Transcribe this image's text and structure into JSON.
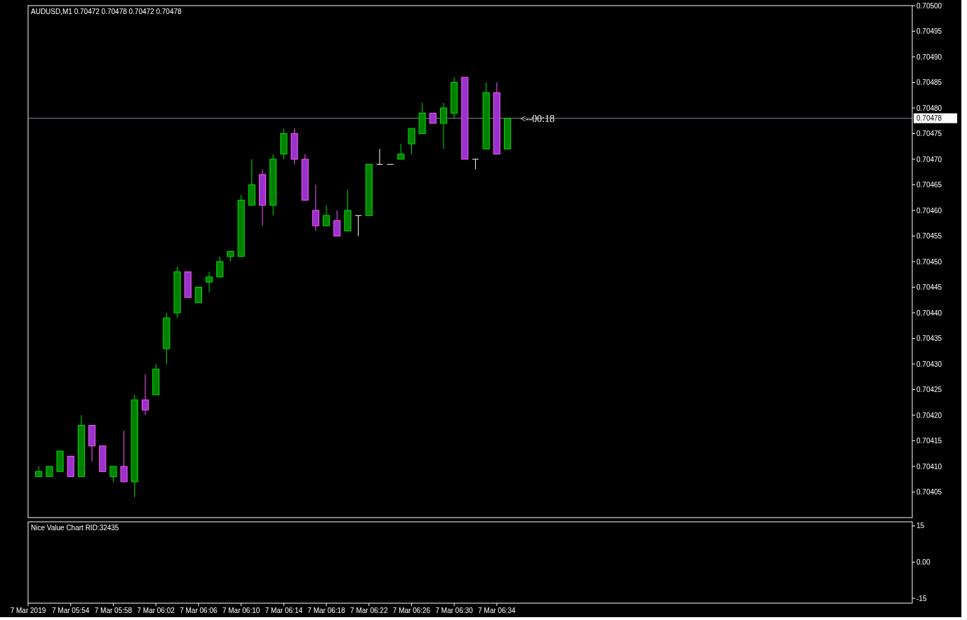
{
  "chart_data": [
    {
      "type": "candlestick",
      "title": "AUDUSD,M1  0.70472 0.70478 0.70472 0.70478",
      "x": [
        "2019-03-07T05:51",
        "2019-03-07T05:52",
        "2019-03-07T05:53",
        "2019-03-07T05:54",
        "2019-03-07T05:55",
        "2019-03-07T05:56",
        "2019-03-07T05:57",
        "2019-03-07T05:58",
        "2019-03-07T05:59",
        "2019-03-07T06:00",
        "2019-03-07T06:01",
        "2019-03-07T06:02",
        "2019-03-07T06:03",
        "2019-03-07T06:04",
        "2019-03-07T06:05",
        "2019-03-07T06:06",
        "2019-03-07T06:07",
        "2019-03-07T06:08",
        "2019-03-07T06:09",
        "2019-03-07T06:10",
        "2019-03-07T06:11",
        "2019-03-07T06:12",
        "2019-03-07T06:13",
        "2019-03-07T06:14",
        "2019-03-07T06:15",
        "2019-03-07T06:16",
        "2019-03-07T06:17",
        "2019-03-07T06:18",
        "2019-03-07T06:19",
        "2019-03-07T06:20",
        "2019-03-07T06:21",
        "2019-03-07T06:22",
        "2019-03-07T06:23",
        "2019-03-07T06:24",
        "2019-03-07T06:25",
        "2019-03-07T06:26",
        "2019-03-07T06:27",
        "2019-03-07T06:28",
        "2019-03-07T06:29",
        "2019-03-07T06:30",
        "2019-03-07T06:31",
        "2019-03-07T06:32",
        "2019-03-07T06:33",
        "2019-03-07T06:34",
        "2019-03-07T06:35"
      ],
      "ohlc": [
        [
          0.70408,
          0.7041,
          0.70408,
          0.70409
        ],
        [
          0.70408,
          0.7041,
          0.70408,
          0.7041
        ],
        [
          0.70409,
          0.70413,
          0.70409,
          0.70413
        ],
        [
          0.70412,
          0.70412,
          0.70408,
          0.70408
        ],
        [
          0.70408,
          0.7042,
          0.70408,
          0.70418
        ],
        [
          0.70418,
          0.70418,
          0.70411,
          0.70414
        ],
        [
          0.70414,
          0.70414,
          0.70409,
          0.70409
        ],
        [
          0.70408,
          0.7041,
          0.70407,
          0.7041
        ],
        [
          0.7041,
          0.70417,
          0.70407,
          0.70407
        ],
        [
          0.70407,
          0.70424,
          0.70404,
          0.70423
        ],
        [
          0.70423,
          0.70428,
          0.7042,
          0.70421
        ],
        [
          0.70424,
          0.7043,
          0.70424,
          0.70429
        ],
        [
          0.70433,
          0.7044,
          0.7043,
          0.70439
        ],
        [
          0.7044,
          0.70449,
          0.70439,
          0.70448
        ],
        [
          0.70448,
          0.70448,
          0.70443,
          0.70443
        ],
        [
          0.70442,
          0.70445,
          0.70442,
          0.70445
        ],
        [
          0.70446,
          0.70448,
          0.70444,
          0.70447
        ],
        [
          0.70447,
          0.70451,
          0.70447,
          0.7045
        ],
        [
          0.70451,
          0.70452,
          0.7045,
          0.70452
        ],
        [
          0.70451,
          0.70463,
          0.70451,
          0.70462
        ],
        [
          0.70461,
          0.7047,
          0.70461,
          0.70465
        ],
        [
          0.70467,
          0.70468,
          0.70457,
          0.70461
        ],
        [
          0.70461,
          0.70471,
          0.70459,
          0.7047
        ],
        [
          0.70471,
          0.70476,
          0.7047,
          0.70475
        ],
        [
          0.70475,
          0.70476,
          0.70469,
          0.7047
        ],
        [
          0.7047,
          0.70471,
          0.70462,
          0.70462
        ],
        [
          0.7046,
          0.70465,
          0.70456,
          0.70457
        ],
        [
          0.70457,
          0.70461,
          0.70457,
          0.70459
        ],
        [
          0.70458,
          0.7046,
          0.70455,
          0.70455
        ],
        [
          0.70456,
          0.70464,
          0.70456,
          0.7046
        ],
        [
          0.70459,
          0.70459,
          0.70455,
          0.70459
        ],
        [
          0.70459,
          0.70469,
          0.70459,
          0.70469
        ],
        [
          0.70469,
          0.70472,
          0.70469,
          0.70469
        ],
        [
          0.70469,
          0.70469,
          0.70469,
          0.70469
        ],
        [
          0.7047,
          0.70473,
          0.7047,
          0.70471
        ],
        [
          0.70473,
          0.70476,
          0.70471,
          0.70476
        ],
        [
          0.70475,
          0.70481,
          0.70475,
          0.70479
        ],
        [
          0.70479,
          0.70479,
          0.70477,
          0.70477
        ],
        [
          0.70477,
          0.70481,
          0.70472,
          0.7048
        ],
        [
          0.70479,
          0.70486,
          0.70478,
          0.70485
        ],
        [
          0.70486,
          0.70486,
          0.7047,
          0.7047
        ],
        [
          0.7047,
          0.7047,
          0.70468,
          0.7047
        ],
        [
          0.70472,
          0.70485,
          0.70472,
          0.70483
        ],
        [
          0.70483,
          0.70485,
          0.70471,
          0.70471
        ],
        [
          0.70472,
          0.70478,
          0.70472,
          0.70478
        ]
      ],
      "colors": [
        "#008000",
        "#008000",
        "#008000",
        "#9932cc",
        "#008000",
        "#9932cc",
        "#9932cc",
        "#008000",
        "#9932cc",
        "#008000",
        "#9932cc",
        "#008000",
        "#008000",
        "#008000",
        "#9932cc",
        "#008000",
        "#008000",
        "#008000",
        "#008000",
        "#008000",
        "#008000",
        "#9932cc",
        "#008000",
        "#008000",
        "#9932cc",
        "#9932cc",
        "#9932cc",
        "#008000",
        "#9932cc",
        "#008000",
        "#ffffff",
        "#008000",
        "#ffffff",
        "#ffffff",
        "#008000",
        "#008000",
        "#008000",
        "#9932cc",
        "#008000",
        "#008000",
        "#9932cc",
        "#ffffff",
        "#008000",
        "#9932cc",
        "#008000"
      ],
      "xlim": [
        "2019-03-07T05:50",
        "2019-03-07T07:13"
      ],
      "ylim": [
        0.704,
        0.705
      ],
      "yticks": [
        {
          "value": 0.70405,
          "label": "0.70405"
        },
        {
          "value": 0.7041,
          "label": "0.70410"
        },
        {
          "value": 0.70415,
          "label": "0.70415"
        },
        {
          "value": 0.7042,
          "label": "0.70420"
        },
        {
          "value": 0.70425,
          "label": "0.70425"
        },
        {
          "value": 0.7043,
          "label": "0.70430"
        },
        {
          "value": 0.70435,
          "label": "0.70435"
        },
        {
          "value": 0.7044,
          "label": "0.70440"
        },
        {
          "value": 0.70445,
          "label": "0.70445"
        },
        {
          "value": 0.7045,
          "label": "0.70450"
        },
        {
          "value": 0.70455,
          "label": "0.70455"
        },
        {
          "value": 0.7046,
          "label": "0.70460"
        },
        {
          "value": 0.70465,
          "label": "0.70465"
        },
        {
          "value": 0.7047,
          "label": "0.70470"
        },
        {
          "value": 0.70475,
          "label": "0.70475"
        },
        {
          "value": 0.7048,
          "label": "0.70480"
        },
        {
          "value": 0.70485,
          "label": "0.70485"
        },
        {
          "value": 0.7049,
          "label": "0.70490"
        },
        {
          "value": 0.70495,
          "label": "0.70495"
        },
        {
          "value": 0.705,
          "label": "0.70500"
        }
      ],
      "ref_lines": [
        {
          "axis": "y",
          "value": 0.70478,
          "label": "0.70478",
          "color": "#778899"
        }
      ],
      "annotations": [
        {
          "text": "<--00:18",
          "x": "2019-03-07T06:35",
          "y": 0.70478
        }
      ],
      "tick_labels": "y"
    },
    {
      "type": "line",
      "title": "Nice Value Chart RID:32435",
      "xlim": [
        "2019-03-07T05:50",
        "2019-03-07T07:13"
      ],
      "xticks": [
        {
          "value": "2019-03-07T05:50",
          "label": "7 Mar 2019"
        },
        {
          "value": "2019-03-07T05:54",
          "label": "7 Mar 05:54"
        },
        {
          "value": "2019-03-07T05:58",
          "label": "7 Mar 05:58"
        },
        {
          "value": "2019-03-07T06:02",
          "label": "7 Mar 06:02"
        },
        {
          "value": "2019-03-07T06:06",
          "label": "7 Mar 06:06"
        },
        {
          "value": "2019-03-07T06:10",
          "label": "7 Mar 06:10"
        },
        {
          "value": "2019-03-07T06:14",
          "label": "7 Mar 06:14"
        },
        {
          "value": "2019-03-07T06:18",
          "label": "7 Mar 06:18"
        },
        {
          "value": "2019-03-07T06:22",
          "label": "7 Mar 06:22"
        },
        {
          "value": "2019-03-07T06:26",
          "label": "7 Mar 06:26"
        },
        {
          "value": "2019-03-07T06:30",
          "label": "7 Mar 06:30"
        },
        {
          "value": "2019-03-07T06:34",
          "label": "7 Mar 06:34"
        }
      ],
      "ylim": [
        -17,
        16.7
      ],
      "yticks": [
        15,
        {
          "value": 0,
          "label": "0.00"
        },
        -15
      ]
    }
  ]
}
